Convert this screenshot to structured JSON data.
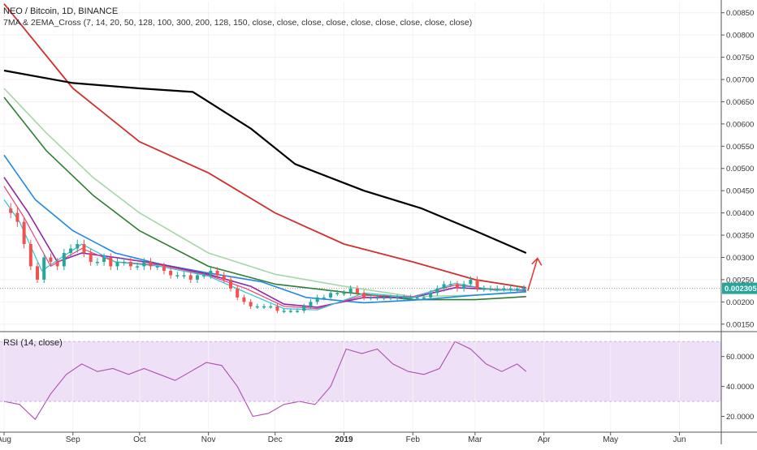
{
  "header": {
    "symbol_line": "NEO / Bitcoin, 1D, BINANCE",
    "indicator_line": "7MA & 2EMA_Cross (7, 14, 20, 50, 128, 100, 300, 200, 128, 150, close, close, close, close, close, close, close, close, close)"
  },
  "rsi_panel": {
    "label": "RSI (14, close)"
  },
  "colors": {
    "up": "#26a69a",
    "down": "#ef5350",
    "ema300": "#000000",
    "ema200": "#d32f2f",
    "ema128_light": "#a5d6a7",
    "ema150": "#2e7d32",
    "ma50": "#1e88e5",
    "ma20": "#8e24aa",
    "ma14": "#ec407a",
    "ma7": "#26c6da",
    "rsi_line": "#b04fb0",
    "rsi_band": "#ede0f7",
    "arrow": "#e53935",
    "price_tag": "#26a69a"
  },
  "chart_data": [
    {
      "type": "line",
      "title": "NEO / Bitcoin, 1D, BINANCE",
      "ylim": [
        0.00135,
        0.00875
      ],
      "y_tick_labels": [
        "0.00850",
        "0.00800",
        "0.00750",
        "0.00700",
        "0.00650",
        "0.00600",
        "0.00550",
        "0.00500",
        "0.00450",
        "0.00400",
        "0.00350",
        "0.00300",
        "0.00250",
        "0.00200",
        "0.00150"
      ],
      "x_tick_labels": [
        "Aug",
        "Sep",
        "Oct",
        "Nov",
        "Dec",
        "2019",
        "Feb",
        "Mar",
        "Apr",
        "May",
        "Jun"
      ],
      "last_price_label": "0.002305",
      "series": [
        {
          "key": "ema300",
          "x": [
            "2018-08-01",
            "2018-09-01",
            "2018-10-01",
            "2018-10-25",
            "2018-11-20",
            "2018-12-10",
            "2019-01-10",
            "2019-02-05",
            "2019-03-01",
            "2019-03-24"
          ],
          "values": [
            0.0072,
            0.00692,
            0.0068,
            0.00672,
            0.0059,
            0.0051,
            0.0045,
            0.0041,
            0.0036,
            0.0031
          ]
        },
        {
          "key": "ema200",
          "x": [
            "2018-08-01",
            "2018-09-01",
            "2018-10-01",
            "2018-11-01",
            "2018-12-01",
            "2019-01-01",
            "2019-02-01",
            "2019-03-01",
            "2019-03-24"
          ],
          "values": [
            0.0087,
            0.0068,
            0.0056,
            0.0049,
            0.004,
            0.0033,
            0.0029,
            0.0025,
            0.00232
          ]
        },
        {
          "key": "ema128_light",
          "x": [
            "2018-08-01",
            "2018-08-20",
            "2018-09-10",
            "2018-10-01",
            "2018-11-01",
            "2018-12-01",
            "2019-01-01",
            "2019-02-01",
            "2019-03-01",
            "2019-03-24"
          ],
          "values": [
            0.0068,
            0.0058,
            0.0048,
            0.004,
            0.0031,
            0.00262,
            0.00235,
            0.00212,
            0.00215,
            0.00222
          ]
        },
        {
          "key": "ema150",
          "x": [
            "2018-08-01",
            "2018-08-20",
            "2018-09-10",
            "2018-10-01",
            "2018-11-01",
            "2018-12-01",
            "2019-01-01",
            "2019-02-01",
            "2019-03-01",
            "2019-03-24"
          ],
          "values": [
            0.0066,
            0.0054,
            0.0044,
            0.0036,
            0.0028,
            0.0024,
            0.00222,
            0.00205,
            0.00205,
            0.00212
          ]
        },
        {
          "key": "ma50",
          "x": [
            "2018-08-01",
            "2018-08-15",
            "2018-09-01",
            "2018-09-20",
            "2018-10-10",
            "2018-11-01",
            "2018-11-25",
            "2018-12-15",
            "2019-01-10",
            "2019-02-05",
            "2019-03-01",
            "2019-03-24"
          ],
          "values": [
            0.0053,
            0.0043,
            0.0036,
            0.0031,
            0.00285,
            0.00265,
            0.00245,
            0.0021,
            0.00198,
            0.00205,
            0.00215,
            0.00223
          ]
        },
        {
          "key": "ma20",
          "x": [
            "2018-08-01",
            "2018-08-12",
            "2018-08-25",
            "2018-09-05",
            "2018-09-20",
            "2018-10-10",
            "2018-11-01",
            "2018-11-20",
            "2018-12-05",
            "2018-12-20",
            "2019-01-10",
            "2019-02-01",
            "2019-02-20",
            "2019-03-10",
            "2019-03-24"
          ],
          "values": [
            0.0048,
            0.004,
            0.0029,
            0.0031,
            0.003,
            0.00285,
            0.00262,
            0.00235,
            0.00195,
            0.00188,
            0.0021,
            0.0021,
            0.00232,
            0.00228,
            0.00226
          ]
        },
        {
          "key": "ma14",
          "x": [
            "2018-08-01",
            "2018-08-10",
            "2018-08-22",
            "2018-09-05",
            "2018-09-20",
            "2018-10-10",
            "2018-11-01",
            "2018-11-18",
            "2018-12-05",
            "2018-12-20",
            "2019-01-10",
            "2019-02-01",
            "2019-02-20",
            "2019-03-10",
            "2019-03-24"
          ],
          "values": [
            0.0046,
            0.0039,
            0.0028,
            0.0032,
            0.0029,
            0.00283,
            0.0026,
            0.0023,
            0.0019,
            0.00185,
            0.00215,
            0.00212,
            0.00238,
            0.00228,
            0.00227
          ]
        },
        {
          "key": "ma7",
          "x": [
            "2018-08-01",
            "2018-08-08",
            "2018-08-18",
            "2018-09-05",
            "2018-09-20",
            "2018-10-10",
            "2018-11-01",
            "2018-11-16",
            "2018-12-05",
            "2018-12-20",
            "2019-01-10",
            "2019-02-01",
            "2019-02-20",
            "2019-03-10",
            "2019-03-24"
          ],
          "values": [
            0.0043,
            0.0038,
            0.0027,
            0.0033,
            0.0029,
            0.0028,
            0.00258,
            0.00225,
            0.00185,
            0.00182,
            0.0022,
            0.0021,
            0.00242,
            0.00226,
            0.00228
          ]
        }
      ],
      "candles": {
        "x": [
          "2018-08-01",
          "2018-08-04",
          "2018-08-07",
          "2018-08-10",
          "2018-08-13",
          "2018-08-16",
          "2018-08-19",
          "2018-08-22",
          "2018-08-25",
          "2018-08-28",
          "2018-08-31",
          "2018-09-03",
          "2018-09-06",
          "2018-09-09",
          "2018-09-12",
          "2018-09-15",
          "2018-09-18",
          "2018-09-21",
          "2018-09-24",
          "2018-09-27",
          "2018-09-30",
          "2018-10-03",
          "2018-10-06",
          "2018-10-09",
          "2018-10-12",
          "2018-10-15",
          "2018-10-18",
          "2018-10-21",
          "2018-10-24",
          "2018-10-27",
          "2018-10-30",
          "2018-11-02",
          "2018-11-05",
          "2018-11-08",
          "2018-11-11",
          "2018-11-14",
          "2018-11-17",
          "2018-11-20",
          "2018-11-23",
          "2018-11-26",
          "2018-11-29",
          "2018-12-02",
          "2018-12-05",
          "2018-12-08",
          "2018-12-11",
          "2018-12-14",
          "2018-12-17",
          "2018-12-20",
          "2018-12-23",
          "2018-12-26",
          "2018-12-29",
          "2019-01-01",
          "2019-01-04",
          "2019-01-07",
          "2019-01-10",
          "2019-01-13",
          "2019-01-16",
          "2019-01-19",
          "2019-01-22",
          "2019-01-25",
          "2019-01-28",
          "2019-01-31",
          "2019-02-03",
          "2019-02-06",
          "2019-02-09",
          "2019-02-12",
          "2019-02-15",
          "2019-02-18",
          "2019-02-21",
          "2019-02-24",
          "2019-02-27",
          "2019-03-02",
          "2019-03-05",
          "2019-03-08",
          "2019-03-11",
          "2019-03-14",
          "2019-03-17",
          "2019-03-20",
          "2019-03-23"
        ],
        "close": [
          0.0041,
          0.004,
          0.0038,
          0.0033,
          0.0028,
          0.0025,
          0.003,
          0.0029,
          0.0028,
          0.0031,
          0.0032,
          0.0033,
          0.0031,
          0.0029,
          0.0029,
          0.003,
          0.0028,
          0.0029,
          0.0029,
          0.0028,
          0.0028,
          0.0029,
          0.0028,
          0.0028,
          0.0027,
          0.0026,
          0.0026,
          0.0026,
          0.0025,
          0.0026,
          0.0026,
          0.0027,
          0.0026,
          0.0025,
          0.0023,
          0.0021,
          0.002,
          0.0019,
          0.0019,
          0.0019,
          0.0019,
          0.0018,
          0.0018,
          0.0018,
          0.0018,
          0.0019,
          0.002,
          0.0021,
          0.0021,
          0.0022,
          0.0022,
          0.0022,
          0.0023,
          0.0022,
          0.0021,
          0.0021,
          0.0021,
          0.0021,
          0.0021,
          0.0021,
          0.0021,
          0.0021,
          0.0021,
          0.0021,
          0.0022,
          0.0023,
          0.0024,
          0.0024,
          0.0023,
          0.0024,
          0.0025,
          0.0023,
          0.0023,
          0.0023,
          0.0023,
          0.0023,
          0.0023,
          0.0023,
          0.00231
        ]
      },
      "annotation": {
        "type": "arrow-up",
        "color": "#e53935"
      }
    },
    {
      "type": "line",
      "title": "RSI (14, close)",
      "ylim": [
        10,
        75
      ],
      "band": [
        30,
        70
      ],
      "y_tick_labels": [
        "60.0000",
        "40.0000",
        "20.0000"
      ],
      "x": [
        "2018-08-01",
        "2018-08-08",
        "2018-08-15",
        "2018-08-22",
        "2018-08-29",
        "2018-09-05",
        "2018-09-12",
        "2018-09-19",
        "2018-09-26",
        "2018-10-03",
        "2018-10-10",
        "2018-10-17",
        "2018-10-24",
        "2018-10-31",
        "2018-11-07",
        "2018-11-14",
        "2018-11-21",
        "2018-11-28",
        "2018-12-05",
        "2018-12-12",
        "2018-12-19",
        "2018-12-26",
        "2019-01-02",
        "2019-01-09",
        "2019-01-16",
        "2019-01-23",
        "2019-01-30",
        "2019-02-06",
        "2019-02-13",
        "2019-02-20",
        "2019-02-27",
        "2019-03-06",
        "2019-03-13",
        "2019-03-20",
        "2019-03-24"
      ],
      "values": [
        30,
        28,
        18,
        35,
        48,
        55,
        50,
        52,
        48,
        52,
        48,
        44,
        50,
        56,
        54,
        40,
        20,
        22,
        28,
        30,
        28,
        40,
        65,
        62,
        65,
        55,
        50,
        48,
        52,
        70,
        65,
        55,
        50,
        55,
        50
      ]
    }
  ]
}
